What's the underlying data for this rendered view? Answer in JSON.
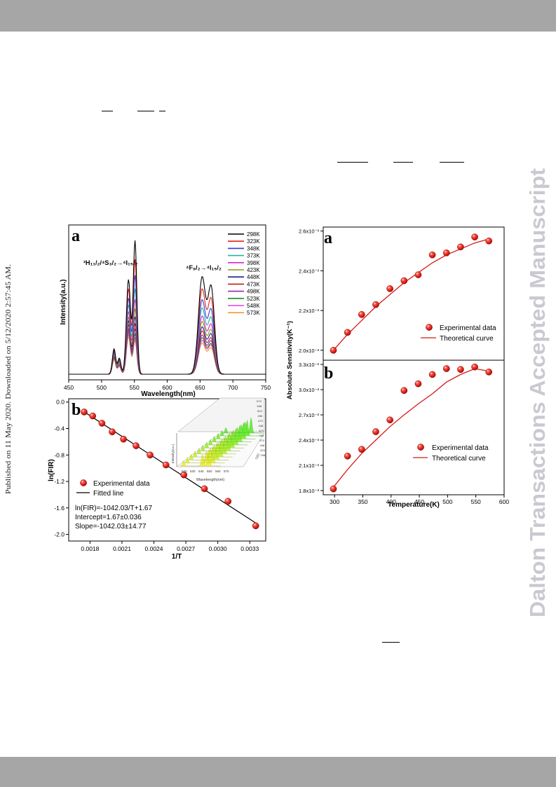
{
  "watermark": "Dalton Transactions Accepted Manuscript",
  "published_line": "Published on 11 May 2020. Downloaded on 5/12/2020 2:57:45 AM.",
  "colors": {
    "header_band": "#a6a6a6",
    "watermark": "#c9c9d1",
    "marker_red": "#e0201c"
  },
  "figure_left": {
    "panel_a": {
      "letter": "a",
      "peak1": [
        "²H₁₁/₂",
        "/",
        "⁴S₃/₂",
        "→",
        "⁴I₁₅/₂"
      ],
      "peak2": [
        "⁴F₉/₂",
        "→",
        "⁴I₁₅/₂"
      ]
    },
    "panel_b": {
      "letter": "b",
      "legend": [
        "Experimental data",
        "Fitted line"
      ],
      "annotations": [
        "ln(FIR)=-1042.03/T+1.67",
        "Intercept=1.67±0.036",
        "Slope=-1042.03±14.77"
      ],
      "inset": {
        "xlabel": "Wavelength(nm)",
        "ylabel": "Intensity(a.u.)",
        "zlabel": "T(K)",
        "xticks": [
          "520",
          "530",
          "540",
          "550",
          "560",
          "570"
        ],
        "temps": [
          "573",
          "548",
          "523",
          "498",
          "473",
          "448",
          "423",
          "398",
          "373",
          "348",
          "323",
          "298"
        ]
      }
    }
  },
  "figure_right": {
    "panel_a": {
      "letter": "a",
      "legend": [
        "Experimental data",
        "Theoretical curve"
      ]
    },
    "panel_b": {
      "letter": "b",
      "legend": [
        "Experimental data",
        "Theoretical curve"
      ]
    },
    "shared_ylabel": "Absolute Sensitivity(K⁻¹)"
  },
  "chart_data": [
    {
      "id": "emission-spectra",
      "type": "line",
      "xlabel": "Wavelength(nm)",
      "ylabel": "Intensity(a.u.)",
      "xlim": [
        450,
        750
      ],
      "xticks": [
        450,
        500,
        550,
        600,
        650,
        700,
        750
      ],
      "series": [
        {
          "name": "298K",
          "color": "#000000",
          "peaks": [
            0.19,
            0.12,
            0.71,
            1.0,
            0.72,
            0.64
          ]
        },
        {
          "name": "323K",
          "color": "#e8231f",
          "peaks": [
            0.18,
            0.11,
            0.64,
            0.86,
            0.63,
            0.55
          ]
        },
        {
          "name": "348K",
          "color": "#2f3fd6",
          "peaks": [
            0.17,
            0.1,
            0.57,
            0.74,
            0.55,
            0.47
          ]
        },
        {
          "name": "373K",
          "color": "#2ab0a6",
          "peaks": [
            0.16,
            0.09,
            0.52,
            0.64,
            0.49,
            0.41
          ]
        },
        {
          "name": "398K",
          "color": "#d926c8",
          "peaks": [
            0.15,
            0.09,
            0.47,
            0.56,
            0.43,
            0.36
          ]
        },
        {
          "name": "423K",
          "color": "#8a9a18",
          "peaks": [
            0.14,
            0.08,
            0.43,
            0.49,
            0.39,
            0.32
          ]
        },
        {
          "name": "448K",
          "color": "#1b1e8f",
          "peaks": [
            0.14,
            0.08,
            0.4,
            0.43,
            0.35,
            0.29
          ]
        },
        {
          "name": "473K",
          "color": "#b0231a",
          "peaks": [
            0.13,
            0.07,
            0.37,
            0.38,
            0.32,
            0.26
          ]
        },
        {
          "name": "498K",
          "color": "#9527b5",
          "peaks": [
            0.13,
            0.07,
            0.34,
            0.34,
            0.29,
            0.24
          ]
        },
        {
          "name": "523K",
          "color": "#1f8a2a",
          "peaks": [
            0.12,
            0.07,
            0.32,
            0.3,
            0.27,
            0.22
          ]
        },
        {
          "name": "548K",
          "color": "#e23fe0",
          "peaks": [
            0.12,
            0.06,
            0.3,
            0.27,
            0.25,
            0.21
          ]
        },
        {
          "name": "573K",
          "color": "#f39a2c",
          "peaks": [
            0.11,
            0.06,
            0.28,
            0.25,
            0.23,
            0.19
          ]
        }
      ]
    },
    {
      "id": "fir-fit",
      "type": "scatter",
      "xlabel": "1/T",
      "ylabel": "ln(FIR)",
      "xlim": [
        0.0016,
        0.00345
      ],
      "ylim": [
        -2.1,
        0.05
      ],
      "xticks": [
        "0.0018",
        "0.0021",
        "0.0024",
        "0.0027",
        "0.0030",
        "0.0033"
      ],
      "yticks": [
        "0.0",
        "-0.4",
        "-0.8",
        "-1.2",
        "-1.6",
        "-2.0"
      ],
      "fit": {
        "slope": -1042.03,
        "intercept": 1.67
      },
      "x": [
        0.001745,
        0.001825,
        0.001912,
        0.002008,
        0.002114,
        0.002232,
        0.002364,
        0.002513,
        0.002681,
        0.002874,
        0.003096,
        0.003356
      ],
      "y": [
        -0.15,
        -0.21,
        -0.32,
        -0.45,
        -0.56,
        -0.66,
        -0.8,
        -0.95,
        -1.1,
        -1.31,
        -1.5,
        -1.87
      ]
    },
    {
      "id": "abs-sensitivity-a",
      "type": "scatter",
      "ylabel": "Absolute Sensitivity(K⁻¹)",
      "xlim": [
        280,
        600
      ],
      "ylim": [
        0.00195,
        0.00262
      ],
      "yticks": [
        "2.0x10⁻³",
        "2.2x10⁻³",
        "2.4x10⁻³",
        "2.6x10⁻³"
      ],
      "x": [
        298,
        323,
        348,
        373,
        398,
        423,
        448,
        473,
        498,
        523,
        548,
        573
      ],
      "y": [
        0.002,
        0.00209,
        0.00218,
        0.00223,
        0.00231,
        0.00235,
        0.00238,
        0.00248,
        0.00249,
        0.00252,
        0.00257,
        0.00255
      ],
      "curve": {
        "x": [
          298,
          323,
          348,
          373,
          398,
          423,
          448,
          473,
          498,
          523,
          548,
          573
        ],
        "y": [
          0.002,
          0.00208,
          0.00215,
          0.00222,
          0.00228,
          0.00234,
          0.00239,
          0.00244,
          0.00248,
          0.00251,
          0.00254,
          0.00256
        ]
      }
    },
    {
      "id": "abs-sensitivity-b",
      "type": "scatter",
      "xlabel": "Temperature(K)",
      "xlim": [
        280,
        600
      ],
      "ylim": [
        0.00175,
        0.00335
      ],
      "xticks": [
        "300",
        "350",
        "400",
        "450",
        "500",
        "550",
        "600"
      ],
      "yticks": [
        "1.8x10⁻³",
        "2.1x10⁻³",
        "2.4x10⁻³",
        "2.7x10⁻³",
        "3.0x10⁻³",
        "3.3x10⁻³"
      ],
      "x": [
        298,
        323,
        348,
        373,
        398,
        423,
        448,
        473,
        498,
        523,
        548,
        573
      ],
      "y": [
        0.00182,
        0.00221,
        0.00229,
        0.0025,
        0.00264,
        0.00299,
        0.00307,
        0.00318,
        0.00325,
        0.00324,
        0.00327,
        0.00321
      ],
      "curve": {
        "x": [
          298,
          323,
          348,
          373,
          398,
          423,
          448,
          473,
          498,
          523,
          548,
          573
        ],
        "y": [
          0.00184,
          0.00205,
          0.00224,
          0.0024,
          0.00256,
          0.0027,
          0.00283,
          0.00295,
          0.00309,
          0.00318,
          0.00325,
          0.00322
        ]
      }
    }
  ]
}
